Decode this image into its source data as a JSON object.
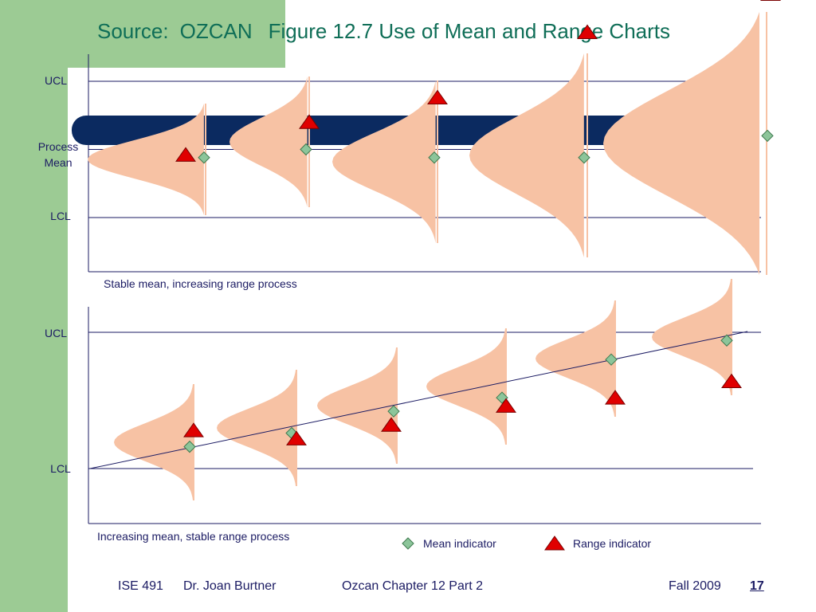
{
  "slide": {
    "title_source": "Source:",
    "title_source_name": "OZCAN",
    "title_figure": "Figure 12.7 Use of Mean and Range Charts",
    "colors": {
      "green": "#9ccb94",
      "title": "#0f6e57",
      "text": "#1b1b63",
      "curve": "#f7c2a4",
      "mean_marker": "#8cc59a",
      "range_marker": "#e00000",
      "bar": "#0b2a60"
    }
  },
  "chart_data": [
    {
      "type": "scatter",
      "title": "",
      "caption": "Stable mean, increasing range process",
      "control_labels": {
        "ucl": "UCL",
        "center": "Process Mean",
        "lcl": "LCL"
      },
      "ylim": [
        0,
        100
      ],
      "limits": {
        "ucl": 70,
        "center": 45,
        "lcl": 20
      },
      "samples": [
        1,
        2,
        3,
        4,
        5
      ],
      "mean_values": [
        42,
        45,
        42,
        42,
        50
      ],
      "range_values": [
        43,
        55,
        64,
        88,
        102
      ],
      "curve_spreads": [
        2,
        2.5,
        3,
        4,
        5.5
      ]
    },
    {
      "type": "scatter",
      "title": "",
      "caption": "Increasing mean, stable range process",
      "control_labels": {
        "ucl": "UCL",
        "lcl": "LCL"
      },
      "ylim": [
        0,
        100
      ],
      "limits": {
        "ucl": 70,
        "lcl": 20
      },
      "samples": [
        1,
        2,
        3,
        4,
        5,
        6
      ],
      "mean_values": [
        28,
        33,
        41,
        46,
        60,
        67
      ],
      "range_values": [
        34,
        31,
        36,
        43,
        46,
        52
      ],
      "curve_spreads": [
        2,
        2,
        2,
        2,
        2,
        2
      ]
    }
  ],
  "legend": {
    "mean": "Mean indicator",
    "range": "Range indicator"
  },
  "footer": {
    "course": "ISE 491",
    "author": "Dr. Joan Burtner",
    "chapter": "Ozcan Chapter 12  Part 2",
    "term": "Fall 2009",
    "page": "17"
  }
}
